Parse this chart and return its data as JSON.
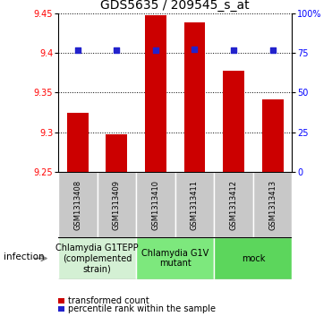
{
  "title": "GDS5635 / 209545_s_at",
  "samples": [
    "GSM1313408",
    "GSM1313409",
    "GSM1313410",
    "GSM1313411",
    "GSM1313412",
    "GSM1313413"
  ],
  "bar_values": [
    9.325,
    9.298,
    9.447,
    9.438,
    9.378,
    9.342
  ],
  "percentile_values": [
    9.403,
    9.403,
    9.403,
    9.405,
    9.403,
    9.403
  ],
  "ylim_min": 9.25,
  "ylim_max": 9.45,
  "yticks_left": [
    9.25,
    9.3,
    9.35,
    9.4,
    9.45
  ],
  "yticks_right": [
    0,
    25,
    50,
    75,
    100
  ],
  "bar_color": "#cc0000",
  "dot_color": "#2222cc",
  "bar_width": 0.55,
  "groups": [
    {
      "label": "Chlamydia G1TEPP\n(complemented\nstrain)",
      "start": 0,
      "end": 2,
      "color": "#d4f0d4"
    },
    {
      "label": "Chlamydia G1V\nmutant",
      "start": 2,
      "end": 4,
      "color": "#7de87d"
    },
    {
      "label": "mock",
      "start": 4,
      "end": 6,
      "color": "#5cd65c"
    }
  ],
  "infection_label": "infection",
  "legend_bar_label": "transformed count",
  "legend_dot_label": "percentile rank within the sample",
  "title_fontsize": 10,
  "tick_fontsize": 7,
  "sample_fontsize": 6,
  "group_fontsize": 7,
  "legend_fontsize": 7
}
